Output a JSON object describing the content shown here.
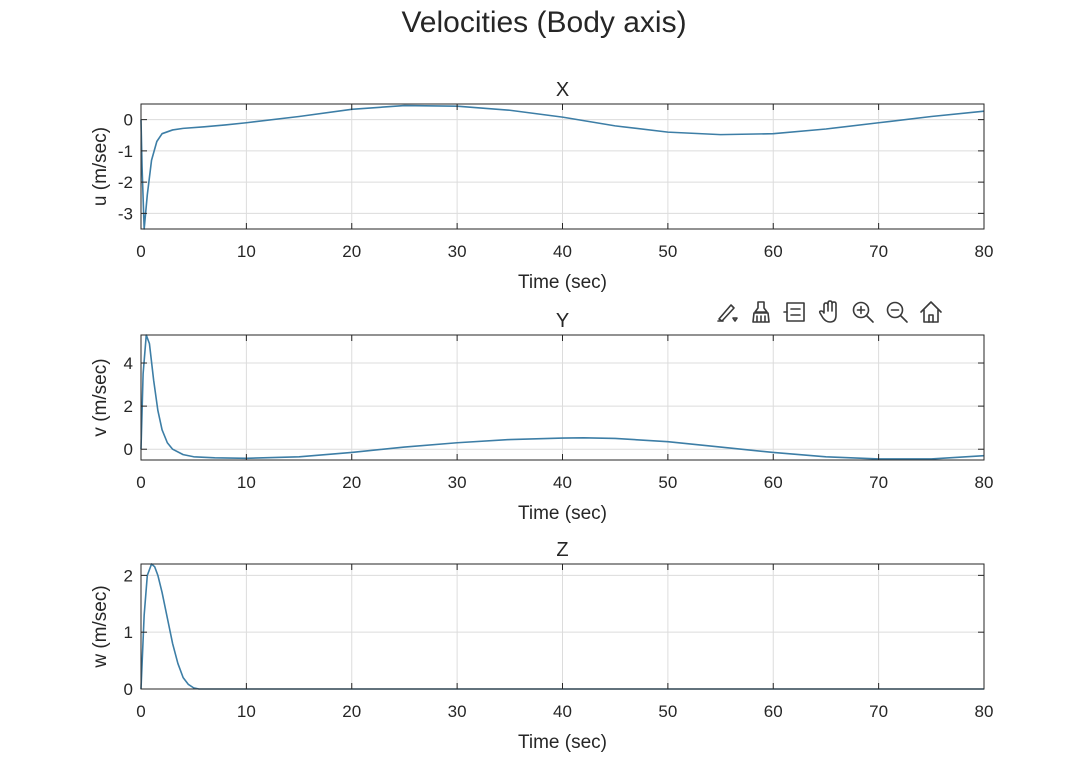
{
  "chart_data": [
    {
      "type": "line",
      "suptitle": "Velocities (Body axis)",
      "title": "X",
      "xlabel": "Time (sec)",
      "ylabel": "u (m/sec)",
      "xlim": [
        0,
        80
      ],
      "ylim": [
        -3.5,
        0.5
      ],
      "xticks": [
        0,
        10,
        20,
        30,
        40,
        50,
        60,
        70,
        80
      ],
      "yticks": [
        -3,
        -2,
        -1,
        0
      ],
      "grid": true,
      "series": [
        {
          "name": "u",
          "x": [
            0,
            0.1,
            0.3,
            0.6,
            1.0,
            1.5,
            2,
            3,
            4,
            6,
            8,
            10,
            15,
            20,
            25,
            30,
            35,
            40,
            45,
            50,
            55,
            60,
            65,
            70,
            75,
            80
          ],
          "y": [
            0,
            -1.5,
            -3.5,
            -2.4,
            -1.3,
            -0.7,
            -0.45,
            -0.33,
            -0.28,
            -0.23,
            -0.17,
            -0.1,
            0.1,
            0.33,
            0.45,
            0.43,
            0.3,
            0.08,
            -0.2,
            -0.4,
            -0.48,
            -0.45,
            -0.3,
            -0.1,
            0.1,
            0.27
          ]
        }
      ]
    },
    {
      "type": "line",
      "title": "Y",
      "xlabel": "Time (sec)",
      "ylabel": "v (m/sec)",
      "xlim": [
        0,
        80
      ],
      "ylim": [
        -0.5,
        5.3
      ],
      "xticks": [
        0,
        10,
        20,
        30,
        40,
        50,
        60,
        70,
        80
      ],
      "yticks": [
        0,
        2,
        4
      ],
      "grid": true,
      "series": [
        {
          "name": "v",
          "x": [
            0,
            0.2,
            0.5,
            0.8,
            1.2,
            1.6,
            2,
            2.5,
            3,
            4,
            5,
            7,
            10,
            15,
            20,
            25,
            30,
            35,
            40,
            42,
            45,
            50,
            55,
            60,
            65,
            70,
            75,
            80
          ],
          "y": [
            0,
            3.5,
            5.3,
            4.9,
            3.2,
            1.8,
            0.9,
            0.3,
            0,
            -0.25,
            -0.35,
            -0.4,
            -0.42,
            -0.35,
            -0.15,
            0.1,
            0.3,
            0.45,
            0.52,
            0.53,
            0.5,
            0.35,
            0.1,
            -0.15,
            -0.35,
            -0.45,
            -0.45,
            -0.3
          ]
        }
      ]
    },
    {
      "type": "line",
      "title": "Z",
      "xlabel": "Time (sec)",
      "ylabel": "w (m/sec)",
      "xlim": [
        0,
        80
      ],
      "ylim": [
        0,
        2.2
      ],
      "xticks": [
        0,
        10,
        20,
        30,
        40,
        50,
        60,
        70,
        80
      ],
      "yticks": [
        0,
        1,
        2
      ],
      "grid": true,
      "series": [
        {
          "name": "w",
          "x": [
            0,
            0.3,
            0.6,
            1.0,
            1.3,
            1.6,
            2,
            2.5,
            3,
            3.5,
            4,
            4.5,
            5,
            5.5,
            6,
            10,
            20,
            30,
            40,
            50,
            60,
            70,
            80
          ],
          "y": [
            0,
            1.3,
            2.0,
            2.2,
            2.15,
            2.0,
            1.7,
            1.25,
            0.8,
            0.45,
            0.2,
            0.08,
            0.02,
            0,
            0,
            0,
            0,
            0,
            0,
            0,
            0,
            0,
            0
          ]
        }
      ]
    }
  ],
  "toolbar": {
    "items": [
      {
        "name": "brush-data-icon",
        "tooltip": "Brush"
      },
      {
        "name": "data-tips-icon",
        "tooltip": "Data Tips"
      },
      {
        "name": "legend-icon",
        "tooltip": "Legend"
      },
      {
        "name": "pan-icon",
        "tooltip": "Pan"
      },
      {
        "name": "zoom-in-icon",
        "tooltip": "Zoom In"
      },
      {
        "name": "zoom-out-icon",
        "tooltip": "Zoom Out"
      },
      {
        "name": "home-icon",
        "tooltip": "Restore View"
      }
    ]
  }
}
